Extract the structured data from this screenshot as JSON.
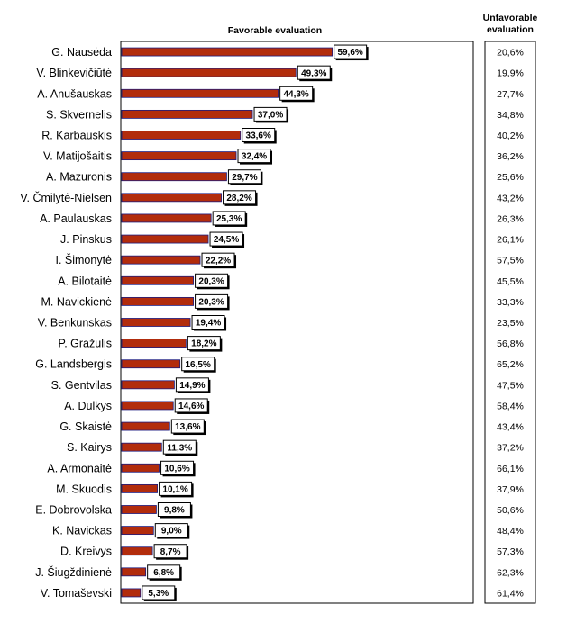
{
  "chart_data": {
    "type": "bar",
    "orientation": "horizontal",
    "title": "Favorable evaluation",
    "secondary_column_title": [
      "Unfavorable",
      "evaluation"
    ],
    "categories": [
      "G. Nausėda",
      "V. Blinkevičiūtė",
      "A. Anušauskas",
      "S. Skvernelis",
      "R. Karbauskis",
      "V. Matijošaitis",
      "A. Mazuronis",
      "V. Čmilytė-Nielsen",
      "A. Paulauskas",
      "J. Pinskus",
      "I. Šimonytė",
      "A. Bilotaitė",
      "M. Navickienė",
      "V. Benkunskas",
      "P. Gražulis",
      "G. Landsbergis",
      "S. Gentvilas",
      "A. Dulkys",
      "G. Skaistė",
      "S. Kairys",
      "A. Armonaitė",
      "M. Skuodis",
      "E. Dobrovolska",
      "K. Navickas",
      "D. Kreivys",
      "J. Šiugždinienė",
      "V. Tomaševski"
    ],
    "series": [
      {
        "name": "Favorable evaluation",
        "values": [
          59.6,
          49.3,
          44.3,
          37.0,
          33.6,
          32.4,
          29.7,
          28.2,
          25.3,
          24.5,
          22.2,
          20.3,
          20.3,
          19.4,
          18.2,
          16.5,
          14.9,
          14.6,
          13.6,
          11.3,
          10.6,
          10.1,
          9.8,
          9.0,
          8.7,
          6.8,
          5.3
        ],
        "labels": [
          "59,6%",
          "49,3%",
          "44,3%",
          "37,0%",
          "33,6%",
          "32,4%",
          "29,7%",
          "28,2%",
          "25,3%",
          "24,5%",
          "22,2%",
          "20,3%",
          "20,3%",
          "19,4%",
          "18,2%",
          "16,5%",
          "14,9%",
          "14,6%",
          "13,6%",
          "11,3%",
          "10,6%",
          "10,1%",
          "9,8%",
          "9,0%",
          "8,7%",
          "6,8%",
          "5,3%"
        ],
        "color": "#b22c0c"
      },
      {
        "name": "Unfavorable evaluation",
        "values": [
          20.6,
          19.9,
          27.7,
          34.8,
          40.2,
          36.2,
          25.6,
          43.2,
          26.3,
          26.1,
          57.5,
          45.5,
          33.3,
          23.5,
          56.8,
          65.2,
          47.5,
          58.4,
          43.4,
          37.2,
          66.1,
          37.9,
          50.6,
          48.4,
          57.3,
          62.3,
          61.4
        ],
        "labels": [
          "20,6%",
          "19,9%",
          "27,7%",
          "34,8%",
          "40,2%",
          "36,2%",
          "25,6%",
          "43,2%",
          "26,3%",
          "26,1%",
          "57,5%",
          "45,5%",
          "33,3%",
          "23,5%",
          "56,8%",
          "65,2%",
          "47,5%",
          "58,4%",
          "43,4%",
          "37,2%",
          "66,1%",
          "37,9%",
          "50,6%",
          "48,4%",
          "57,3%",
          "62,3%",
          "61,4%"
        ]
      }
    ],
    "xlim": [
      0,
      100
    ],
    "grid": false,
    "legend": "none",
    "bar_outline_color": "#1a1a80"
  }
}
